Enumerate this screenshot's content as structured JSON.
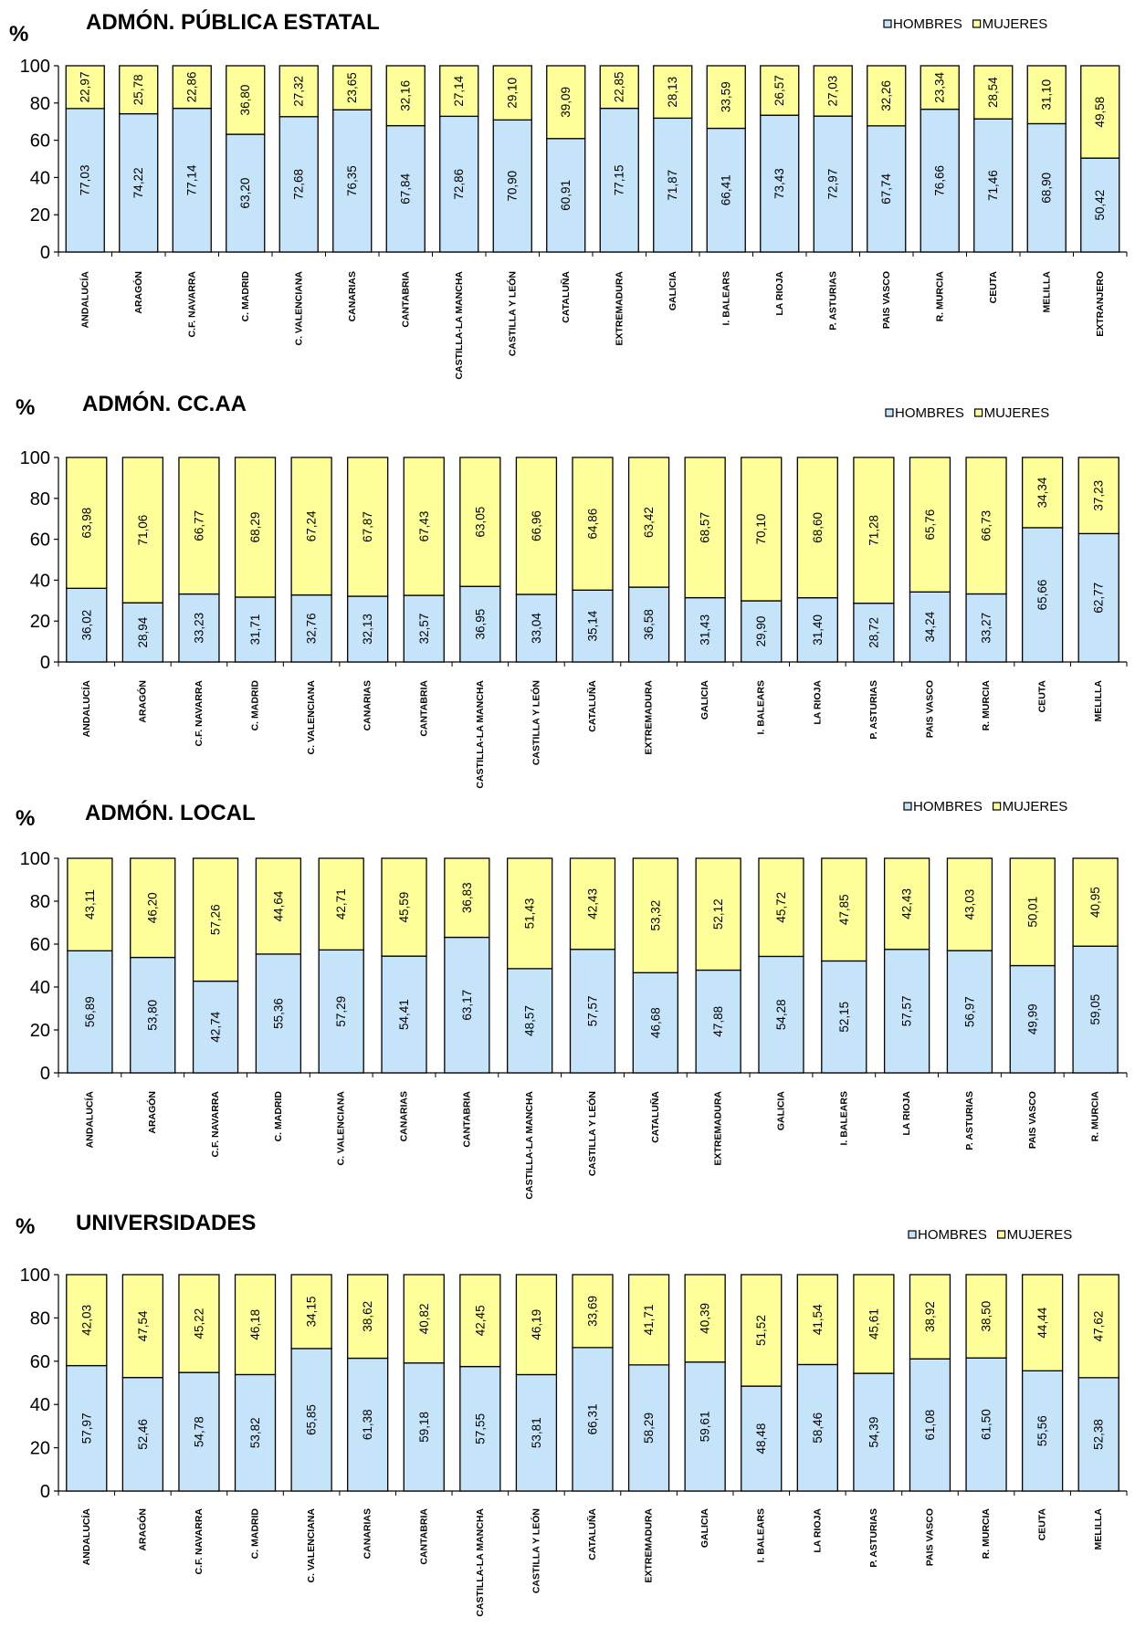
{
  "colors": {
    "hombres": "#C5E3F9",
    "mujeres": "#FFFF99",
    "outline": "#000000"
  },
  "legend": [
    "HOMBRES",
    "MUJERES"
  ],
  "chart_data": [
    {
      "type": "bar",
      "stacked": true,
      "title": "ADMÓN. PÚBLICA ESTATAL",
      "ylabel": "%",
      "ylim": [
        0,
        100
      ],
      "yticks": [
        0,
        20,
        40,
        60,
        80,
        100
      ],
      "legend_position": "top-right",
      "categories": [
        "ANDALUCÍA",
        "ARAGÓN",
        "C.F. NAVARRA",
        "C. MADRID",
        "C. VALENCIANA",
        "CANARIAS",
        "CANTABRIA",
        "CASTILLA-LA MANCHA",
        "CASTILLA Y LEÓN",
        "CATALUÑA",
        "EXTREMADURA",
        "GALICIA",
        "I. BALEARS",
        "LA RIOJA",
        "P. ASTURIAS",
        "PAIS VASCO",
        "R. MURCIA",
        "CEUTA",
        "MELILLA",
        "EXTRANJERO"
      ],
      "series": [
        {
          "name": "HOMBRES",
          "values": [
            77.03,
            74.22,
            77.14,
            63.2,
            72.68,
            76.35,
            67.84,
            72.86,
            70.9,
            60.91,
            77.15,
            71.87,
            66.41,
            73.43,
            72.97,
            67.74,
            76.66,
            71.46,
            68.9,
            50.42
          ],
          "labels": [
            "77,03",
            "74,22",
            "77,14",
            "63,20",
            "72,68",
            "76,35",
            "67,84",
            "72,86",
            "70,90",
            "60,91",
            "77,15",
            "71,87",
            "66,41",
            "73,43",
            "72,97",
            "67,74",
            "76,66",
            "71,46",
            "68,90",
            "50,42"
          ]
        },
        {
          "name": "MUJERES",
          "values": [
            22.97,
            25.78,
            22.86,
            36.8,
            27.32,
            23.65,
            32.16,
            27.14,
            29.1,
            39.09,
            22.85,
            28.13,
            33.59,
            26.57,
            27.03,
            32.26,
            23.34,
            28.54,
            31.1,
            49.58
          ],
          "labels": [
            "22,97",
            "25,78",
            "22,86",
            "36,80",
            "27,32",
            "23,65",
            "32,16",
            "27,14",
            "29,10",
            "39,09",
            "22,85",
            "28,13",
            "33,59",
            "26,57",
            "27,03",
            "32,26",
            "23,34",
            "28,54",
            "31,10",
            "49,58"
          ]
        }
      ]
    },
    {
      "type": "bar",
      "stacked": true,
      "title": "ADMÓN. CC.AA",
      "ylabel": "%",
      "ylim": [
        0,
        100
      ],
      "yticks": [
        0,
        20,
        40,
        60,
        80,
        100
      ],
      "legend_position": "top-right",
      "categories": [
        "ANDALUCÍA",
        "ARAGÓN",
        "C.F. NAVARRA",
        "C. MADRID",
        "C. VALENCIANA",
        "CANARIAS",
        "CANTABRIA",
        "CASTILLA-LA MANCHA",
        "CASTILLA Y LEÓN",
        "CATALUÑA",
        "EXTREMADURA",
        "GALICIA",
        "I. BALEARS",
        "LA RIOJA",
        "P. ASTURIAS",
        "PAIS VASCO",
        "R. MURCIA",
        "CEUTA",
        "MELILLA"
      ],
      "series": [
        {
          "name": "HOMBRES",
          "values": [
            36.02,
            28.94,
            33.23,
            31.71,
            32.76,
            32.13,
            32.57,
            36.95,
            33.04,
            35.14,
            36.58,
            31.43,
            29.9,
            31.4,
            28.72,
            34.24,
            33.27,
            65.66,
            62.77
          ],
          "labels": [
            "36,02",
            "28,94",
            "33,23",
            "31,71",
            "32,76",
            "32,13",
            "32,57",
            "36,95",
            "33,04",
            "35,14",
            "36,58",
            "31,43",
            "29,90",
            "31,40",
            "28,72",
            "34,24",
            "33,27",
            "65,66",
            "62,77"
          ]
        },
        {
          "name": "MUJERES",
          "values": [
            63.98,
            71.06,
            66.77,
            68.29,
            67.24,
            67.87,
            67.43,
            63.05,
            66.96,
            64.86,
            63.42,
            68.57,
            70.1,
            68.6,
            71.28,
            65.76,
            66.73,
            34.34,
            37.23
          ],
          "labels": [
            "63,98",
            "71,06",
            "66,77",
            "68,29",
            "67,24",
            "67,87",
            "67,43",
            "63,05",
            "66,96",
            "64,86",
            "63,42",
            "68,57",
            "70,10",
            "68,60",
            "71,28",
            "65,76",
            "66,73",
            "34,34",
            "37,23"
          ]
        }
      ]
    },
    {
      "type": "bar",
      "stacked": true,
      "title": "ADMÓN. LOCAL",
      "ylabel": "%",
      "ylim": [
        0,
        100
      ],
      "yticks": [
        0,
        20,
        40,
        60,
        80,
        100
      ],
      "legend_position": "top-right",
      "categories": [
        "ANDALUCÍA",
        "ARAGÓN",
        "C.F. NAVARRA",
        "C. MADRID",
        "C. VALENCIANA",
        "CANARIAS",
        "CANTABRIA",
        "CASTILLA-LA MANCHA",
        "CASTILLA Y LEÓN",
        "CATALUÑA",
        "EXTREMADURA",
        "GALICIA",
        "I. BALEARS",
        "LA RIOJA",
        "P. ASTURIAS",
        "PAIS VASCO",
        "R. MURCIA"
      ],
      "series": [
        {
          "name": "HOMBRES",
          "values": [
            56.89,
            53.8,
            42.74,
            55.36,
            57.29,
            54.41,
            63.17,
            48.57,
            57.57,
            46.68,
            47.88,
            54.28,
            52.15,
            57.57,
            56.97,
            49.99,
            59.05
          ],
          "labels": [
            "56,89",
            "53,80",
            "42,74",
            "55,36",
            "57,29",
            "54,41",
            "63,17",
            "48,57",
            "57,57",
            "46,68",
            "47,88",
            "54,28",
            "52,15",
            "57,57",
            "56,97",
            "49,99",
            "59,05"
          ]
        },
        {
          "name": "MUJERES",
          "values": [
            43.11,
            46.2,
            57.26,
            44.64,
            42.71,
            45.59,
            36.83,
            51.43,
            42.43,
            53.32,
            52.12,
            45.72,
            47.85,
            42.43,
            43.03,
            50.01,
            40.95
          ],
          "labels": [
            "43,11",
            "46,20",
            "57,26",
            "44,64",
            "42,71",
            "45,59",
            "36,83",
            "51,43",
            "42,43",
            "53,32",
            "52,12",
            "45,72",
            "47,85",
            "42,43",
            "43,03",
            "50,01",
            "40,95"
          ]
        }
      ]
    },
    {
      "type": "bar",
      "stacked": true,
      "title": "UNIVERSIDADES",
      "ylabel": "%",
      "ylim": [
        0,
        100
      ],
      "yticks": [
        0,
        20,
        40,
        60,
        80,
        100
      ],
      "legend_position": "top-right",
      "categories": [
        "ANDALUCÍA",
        "ARAGÓN",
        "C.F. NAVARRA",
        "C. MADRID",
        "C. VALENCIANA",
        "CANARIAS",
        "CANTABRIA",
        "CASTILLA-LA MANCHA",
        "CASTILLA Y LEÓN",
        "CATALUÑA",
        "EXTREMADURA",
        "GALICIA",
        "I. BALEARS",
        "LA RIOJA",
        "P. ASTURIAS",
        "PAIS VASCO",
        "R. MURCIA",
        "CEUTA",
        "MELILLA"
      ],
      "series": [
        {
          "name": "HOMBRES",
          "values": [
            57.97,
            52.46,
            54.78,
            53.82,
            65.85,
            61.38,
            59.18,
            57.55,
            53.81,
            66.31,
            58.29,
            59.61,
            48.48,
            58.46,
            54.39,
            61.08,
            61.5,
            55.56,
            52.38
          ],
          "labels": [
            "57,97",
            "52,46",
            "54,78",
            "53,82",
            "65,85",
            "61,38",
            "59,18",
            "57,55",
            "53,81",
            "66,31",
            "58,29",
            "59,61",
            "48,48",
            "58,46",
            "54,39",
            "61,08",
            "61,50",
            "55,56",
            "52,38"
          ]
        },
        {
          "name": "MUJERES",
          "values": [
            42.03,
            47.54,
            45.22,
            46.18,
            34.15,
            38.62,
            40.82,
            42.45,
            46.19,
            33.69,
            41.71,
            40.39,
            51.52,
            41.54,
            45.61,
            38.92,
            38.5,
            44.44,
            47.62
          ],
          "labels": [
            "42,03",
            "47,54",
            "45,22",
            "46,18",
            "34,15",
            "38,62",
            "40,82",
            "42,45",
            "46,19",
            "33,69",
            "41,71",
            "40,39",
            "51,52",
            "41,54",
            "45,61",
            "38,92",
            "38,50",
            "44,44",
            "47,62"
          ]
        }
      ]
    }
  ]
}
